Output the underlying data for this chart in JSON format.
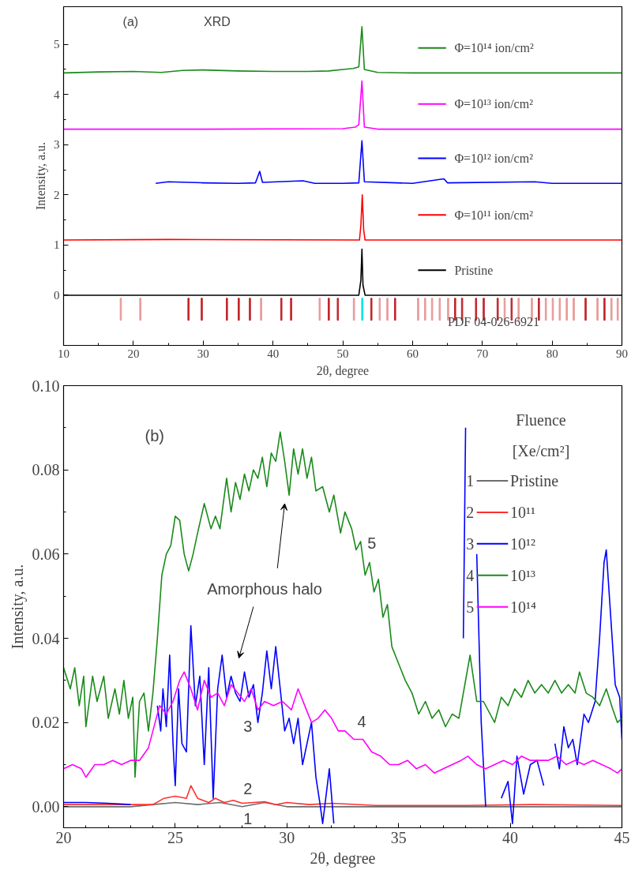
{
  "chart_data": [
    {
      "type": "line",
      "xlabel": "2θ, degree",
      "ylabel": "Intensity, a.u.",
      "xlim": [
        10,
        90
      ],
      "ylim": [
        -1,
        5.75
      ],
      "xticks": [
        10,
        20,
        30,
        40,
        50,
        60,
        70,
        80,
        90
      ],
      "yticks": [
        0,
        1,
        2,
        3,
        4,
        5
      ],
      "grid": false,
      "legend": "right",
      "annotations": [
        "(a)",
        "XRD",
        "PDF 04-026-6921"
      ],
      "series": [
        {
          "name": "Φ=10¹⁴ ion/cm²",
          "color": "#1a8a1a",
          "x": [
            10,
            15,
            20,
            24,
            27,
            30,
            35,
            40,
            45,
            48,
            50,
            51.5,
            52.3,
            52.75,
            53.1,
            55,
            60,
            90
          ],
          "values": [
            4.43,
            4.45,
            4.46,
            4.44,
            4.48,
            4.49,
            4.47,
            4.46,
            4.46,
            4.47,
            4.5,
            4.52,
            4.55,
            5.35,
            4.5,
            4.44,
            4.43,
            4.43
          ]
        },
        {
          "name": "Φ=10¹³ ion/cm²",
          "color": "#ff00ff",
          "x": [
            10,
            30,
            50,
            51.8,
            52.3,
            52.75,
            53.1,
            55,
            90
          ],
          "values": [
            3.31,
            3.31,
            3.32,
            3.35,
            3.4,
            4.27,
            3.35,
            3.31,
            3.31
          ]
        },
        {
          "name": "Φ=10¹² ion/cm²",
          "color": "#0000ff",
          "x": [
            23.2,
            25,
            28,
            30,
            35,
            37.5,
            38.1,
            38.5,
            44.3,
            46,
            50,
            52.3,
            52.75,
            53.1,
            60,
            64.5,
            65,
            77.5,
            80,
            90
          ],
          "values": [
            2.23,
            2.26,
            2.25,
            2.24,
            2.23,
            2.24,
            2.47,
            2.25,
            2.28,
            2.23,
            2.23,
            2.24,
            3.08,
            2.26,
            2.23,
            2.32,
            2.24,
            2.26,
            2.23,
            2.23
          ]
        },
        {
          "name": "Φ=10¹¹ ion/cm²",
          "color": "#ff0000",
          "x": [
            10,
            25,
            52.4,
            52.6,
            52.8,
            53.0,
            53.2,
            90
          ],
          "values": [
            1.1,
            1.11,
            1.1,
            1.4,
            2.0,
            1.3,
            1.1,
            1.1
          ]
        },
        {
          "name": "Pristine",
          "color": "#000000",
          "x": [
            10,
            52.3,
            52.6,
            52.75,
            52.9,
            53.2,
            90
          ],
          "values": [
            0,
            0,
            0.3,
            0.92,
            0.2,
            0,
            0
          ]
        },
        {
          "type": "bar",
          "x": [
            18.2,
            21.0,
            27.9,
            29.8,
            33.4,
            35.1,
            36.7,
            38.3,
            41.2,
            42.6,
            46.7,
            48.0,
            49.3,
            51.6,
            52.8,
            54.1,
            55.3,
            56.4,
            57.5,
            60.8,
            61.8,
            62.8,
            63.9,
            65.1,
            66.1,
            67.1,
            69.1,
            70.2,
            72.2,
            73.2,
            74.2,
            75.2,
            77.1,
            78.1,
            79.1,
            80.1,
            81.1,
            82.1,
            83.1,
            84.8,
            86.5,
            87.5,
            88.5,
            89.4
          ],
          "values": [
            0.44,
            0.44,
            0.44,
            0.44,
            0.44,
            0.44,
            0.44,
            0.44,
            0.44,
            0.44,
            0.44,
            0.44,
            0.44,
            0.44,
            0.44,
            0.44,
            0.44,
            0.44,
            0.44,
            0.44,
            0.44,
            0.44,
            0.44,
            0.44,
            0.44,
            0.44,
            0.44,
            0.44,
            0.44,
            0.44,
            0.44,
            0.44,
            0.44,
            0.44,
            0.44,
            0.44,
            0.44,
            0.44,
            0.44,
            0.44,
            0.44,
            0.44,
            0.44,
            0.44
          ],
          "base": [
            -0.5,
            -0.5,
            -0.5,
            -0.5,
            -0.5,
            -0.5,
            -0.5,
            -0.5,
            -0.5,
            -0.5,
            -0.5,
            -0.5,
            -0.5,
            -0.5,
            -0.5,
            -0.5,
            -0.5,
            -0.5,
            -0.5,
            -0.5,
            -0.5,
            -0.5,
            -0.5,
            -0.5,
            -0.5,
            -0.5,
            -0.5,
            -0.5,
            -0.5,
            -0.5,
            -0.5,
            -0.5,
            -0.5,
            -0.5,
            -0.5,
            -0.5,
            -0.5,
            -0.5,
            -0.5,
            -0.5,
            -0.5,
            -0.5,
            -0.5,
            -0.5
          ],
          "colors": [
            "#e89a9a",
            "#e89a9a",
            "#c0272d",
            "#c0272d",
            "#c0272d",
            "#c0272d",
            "#c0272d",
            "#e89a9a",
            "#c0272d",
            "#c0272d",
            "#e89a9a",
            "#c0272d",
            "#c0272d",
            "#e89a9a",
            "#00e5e5",
            "#c0272d",
            "#e89a9a",
            "#e89a9a",
            "#c0272d",
            "#e89a9a",
            "#e89a9a",
            "#e89a9a",
            "#e89a9a",
            "#e89a9a",
            "#c0272d",
            "#c0272d",
            "#c0272d",
            "#c0272d",
            "#c0272d",
            "#e89a9a",
            "#c0272d",
            "#e89a9a",
            "#e89a9a",
            "#c0272d",
            "#e89a9a",
            "#e89a9a",
            "#e89a9a",
            "#e89a9a",
            "#e89a9a",
            "#c0272d",
            "#e89a9a",
            "#c0272d",
            "#e89a9a",
            "#e89a9a"
          ]
        }
      ]
    },
    {
      "type": "line",
      "xlabel": "2θ, degree",
      "ylabel": "Intensity, a.u.",
      "xlim": [
        20,
        45
      ],
      "ylim": [
        -0.005,
        0.1
      ],
      "xticks": [
        20,
        25,
        30,
        35,
        40,
        45
      ],
      "yticks": [
        {
          "value": 0,
          "label": "0.00"
        },
        {
          "value": 0.02,
          "label": "0.02"
        },
        {
          "value": 0.04,
          "label": "0.04"
        },
        {
          "value": 0.06,
          "label": "0.06"
        },
        {
          "value": 0.08,
          "label": "0.08"
        },
        {
          "value": 0.1,
          "label": "0.10"
        }
      ],
      "grid": false,
      "legend": "top right",
      "legend_title": "Fluence\n[Xe/cm²]",
      "annotations": [
        "(b)",
        "Amorphous halo",
        "5",
        "4",
        "3",
        "2",
        "1"
      ],
      "series": [
        {
          "name": "1 Pristine",
          "color": "#6e6e6e",
          "x": [
            20,
            23,
            24,
            25,
            26,
            27,
            28,
            29,
            30,
            32,
            45
          ],
          "values": [
            0,
            0,
            0.0005,
            0.001,
            0.0005,
            0.001,
            0,
            0.001,
            0,
            0,
            0
          ]
        },
        {
          "name": "2 10¹¹",
          "color": "#ff3030",
          "x": [
            20,
            24,
            24.5,
            25,
            25.5,
            25.7,
            26,
            26.5,
            26.8,
            27.2,
            27.6,
            28,
            28.5,
            29,
            29.5,
            30,
            31,
            32,
            34,
            38,
            41,
            45
          ],
          "values": [
            0.0005,
            0.0005,
            0.002,
            0.0025,
            0.002,
            0.005,
            0.002,
            0.001,
            0.002,
            0.001,
            0.0015,
            0.0008,
            0.001,
            0.0012,
            0.0005,
            0.001,
            0.0005,
            0.0008,
            0.0003,
            0.0003,
            0.0005,
            0.0003
          ]
        },
        {
          "name": "3 10¹²",
          "color": "#0000ff",
          "x": [
            20,
            21,
            22,
            23,
            23.1,
            24.1,
            24.2,
            24.35,
            24.45,
            24.6,
            24.75,
            24.9,
            25.0,
            25.15,
            25.3,
            25.5,
            25.7,
            25.9,
            26.1,
            26.3,
            26.5,
            26.7,
            26.9,
            27.1,
            27.3,
            27.5,
            27.7,
            27.9,
            28.1,
            28.3,
            28.5,
            28.7,
            28.9,
            29.1,
            29.3,
            29.5,
            29.7,
            29.9,
            30.1,
            30.3,
            30.5,
            30.7,
            30.9,
            31.1,
            31.3,
            31.5,
            31.6,
            31.9,
            32.1,
            32.3,
            37.7,
            37.9,
            38.0,
            38.1,
            38.4,
            38.5,
            38.7,
            38.9,
            39.2,
            39.6,
            39.9,
            40.1,
            40.3,
            40.6,
            40.9,
            41.2,
            41.5,
            41.8,
            42.0,
            42.2,
            42.4,
            42.6,
            42.8,
            43.0,
            43.3,
            43.5,
            43.8,
            44.0,
            44.2,
            44.3,
            44.5,
            44.7,
            44.9,
            45.0
          ],
          "values": [
            0.001,
            0.001,
            0.0008,
            0.0005,
            null,
            null,
            0.024,
            0.018,
            0.028,
            0.019,
            0.036,
            0.015,
            0.005,
            0.028,
            0.015,
            0.013,
            0.043,
            0.024,
            0.031,
            0.01,
            0.033,
            0.002,
            0.028,
            0.036,
            0.026,
            0.031,
            0.027,
            0.025,
            0.032,
            0.026,
            0.029,
            0.02,
            0.027,
            0.037,
            0.028,
            0.038,
            0.028,
            0.018,
            0.021,
            0.015,
            0.021,
            0.01,
            0.015,
            0.02,
            0.007,
            0,
            -0.004,
            0.009,
            -0.004,
            null,
            null,
            0.04,
            0.09,
            null,
            null,
            0.06,
            0.02,
            0,
            null,
            0.002,
            0.006,
            -0.004,
            0.012,
            0.003,
            0.01,
            0.011,
            0.005,
            null,
            0.015,
            0.009,
            0.019,
            0.014,
            0.016,
            0.01,
            0.022,
            0.02,
            0.025,
            0.04,
            0.058,
            0.061,
            0.045,
            0.029,
            0.026,
            0.016
          ]
        },
        {
          "name": "4 10¹³",
          "color": "#1a8a1a",
          "x": [
            20,
            20.3,
            20.5,
            20.7,
            20.9,
            21.0,
            21.3,
            21.5,
            21.8,
            22.0,
            22.3,
            22.5,
            22.7,
            22.9,
            23.1,
            23.2,
            23.4,
            23.6,
            23.8,
            24.0,
            24.2,
            24.4,
            24.6,
            24.8,
            25.0,
            25.2,
            25.4,
            25.6,
            25.8,
            26.0,
            26.3,
            26.6,
            26.8,
            27.0,
            27.3,
            27.5,
            27.7,
            27.9,
            28.1,
            28.3,
            28.5,
            28.7,
            28.9,
            29.1,
            29.3,
            29.5,
            29.7,
            29.9,
            30.1,
            30.3,
            30.5,
            30.7,
            30.9,
            31.1,
            31.3,
            31.6,
            31.9,
            32.1,
            32.4,
            32.6,
            32.9,
            33.1,
            33.3,
            33.5,
            33.7,
            33.9,
            34.1,
            34.3,
            34.5,
            34.7,
            35.0,
            35.3,
            35.6,
            35.9,
            36.2,
            36.5,
            36.8,
            37.1,
            37.4,
            37.7,
            38.0,
            38.2,
            38.5,
            38.8,
            39.1,
            39.3,
            39.6,
            39.9,
            40.2,
            40.5,
            40.8,
            41.1,
            41.4,
            41.7,
            42.0,
            42.3,
            42.6,
            42.9,
            43.1,
            43.4,
            43.7,
            44.0,
            44.3,
            44.6,
            44.8,
            45.0
          ],
          "values": [
            0.033,
            0.028,
            0.033,
            0.024,
            0.031,
            0.019,
            0.031,
            0.025,
            0.031,
            0.021,
            0.028,
            0.022,
            0.03,
            0.021,
            0.026,
            0.007,
            0.025,
            0.027,
            0.018,
            0.027,
            0.04,
            0.055,
            0.06,
            0.062,
            0.069,
            0.068,
            0.06,
            0.056,
            0.06,
            0.065,
            0.072,
            0.066,
            0.069,
            0.066,
            0.078,
            0.07,
            0.077,
            0.073,
            0.079,
            0.075,
            0.08,
            0.078,
            0.083,
            0.076,
            0.084,
            0.082,
            0.089,
            0.082,
            0.074,
            0.085,
            0.079,
            0.085,
            0.078,
            0.083,
            0.075,
            0.076,
            0.07,
            0.074,
            0.065,
            0.07,
            0.066,
            0.061,
            0.063,
            0.055,
            0.058,
            0.051,
            0.054,
            0.045,
            0.048,
            0.038,
            0.034,
            0.03,
            0.027,
            0.022,
            0.025,
            0.021,
            0.023,
            0.019,
            0.022,
            0.021,
            0.03,
            0.036,
            0.025,
            0.025,
            0.022,
            0.02,
            0.026,
            0.024,
            0.028,
            0.026,
            0.03,
            0.027,
            0.029,
            0.027,
            0.03,
            0.027,
            0.029,
            0.027,
            0.032,
            0.027,
            0.026,
            0.024,
            0.028,
            0.023,
            0.02,
            0.021
          ]
        },
        {
          "name": "5 10¹⁴",
          "color": "#ff00ff",
          "x": [
            20,
            20.4,
            20.8,
            21.0,
            21.4,
            21.8,
            22.2,
            22.6,
            23.0,
            23.4,
            23.8,
            24.1,
            24.3,
            24.6,
            24.9,
            25.2,
            25.4,
            25.7,
            26.0,
            26.3,
            26.6,
            26.9,
            27.2,
            27.5,
            27.8,
            28.1,
            28.4,
            28.7,
            29.0,
            29.4,
            29.8,
            30.2,
            30.5,
            30.8,
            31.1,
            31.4,
            31.7,
            32.0,
            32.3,
            32.6,
            33.0,
            33.4,
            33.8,
            34.2,
            34.6,
            35.0,
            35.4,
            35.8,
            36.2,
            36.6,
            37.0,
            37.4,
            37.8,
            38.1,
            38.5,
            38.9,
            39.3,
            39.7,
            40.1,
            40.5,
            40.9,
            41.3,
            41.7,
            42.1,
            42.5,
            42.9,
            43.3,
            43.7,
            44.1,
            44.5,
            44.8,
            45.0
          ],
          "values": [
            0.009,
            0.01,
            0.009,
            0.007,
            0.01,
            0.01,
            0.011,
            0.01,
            0.011,
            0.011,
            0.014,
            0.02,
            0.024,
            0.022,
            0.025,
            0.03,
            0.032,
            0.028,
            0.023,
            0.03,
            0.026,
            0.027,
            0.024,
            0.029,
            0.027,
            0.025,
            0.028,
            0.023,
            0.025,
            0.024,
            0.025,
            0.023,
            0.028,
            0.024,
            0.02,
            0.021,
            0.023,
            0.021,
            0.018,
            0.018,
            0.016,
            0.016,
            0.013,
            0.012,
            0.01,
            0.01,
            0.011,
            0.009,
            0.01,
            0.008,
            0.009,
            0.01,
            0.011,
            0.012,
            0.01,
            0.009,
            0.01,
            0.011,
            0.01,
            0.012,
            0.011,
            0.011,
            0.011,
            0.012,
            0.01,
            0.011,
            0.01,
            0.011,
            0.01,
            0.009,
            0.008,
            0.009
          ]
        }
      ]
    }
  ]
}
